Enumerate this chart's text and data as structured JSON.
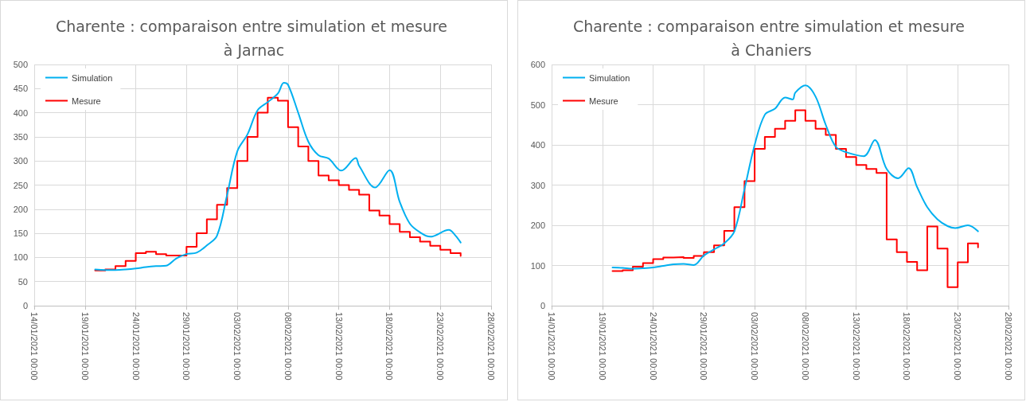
{
  "chart_data": [
    {
      "type": "line",
      "title": "Charente : comparaison entre simulation et mesure à Jarnac",
      "xlim": [
        "2021-01-14",
        "2021-02-28"
      ],
      "xticks": [
        {
          "value": "2021-01-14",
          "label": "14/01/2021 00:00"
        },
        {
          "value": "2021-01-19",
          "label": "19/01/2021 00:00"
        },
        {
          "value": "2021-01-24",
          "label": "24/01/2021 00:00"
        },
        {
          "value": "2021-01-29",
          "label": "29/01/2021 00:00"
        },
        {
          "value": "2021-02-03",
          "label": "03/02/2021 00:00"
        },
        {
          "value": "2021-02-08",
          "label": "08/02/2021 00:00"
        },
        {
          "value": "2021-02-13",
          "label": "13/02/2021 00:00"
        },
        {
          "value": "2021-02-18",
          "label": "18/02/2021 00:00"
        },
        {
          "value": "2021-02-23",
          "label": "23/02/2021 00:00"
        },
        {
          "value": "2021-02-28",
          "label": "28/02/2021 00:00"
        }
      ],
      "ylim": [
        0,
        500
      ],
      "yticks": [
        0,
        50,
        100,
        150,
        200,
        250,
        300,
        350,
        400,
        450,
        500
      ],
      "grid": true,
      "legend": "top left",
      "series": [
        {
          "name": "Simulation",
          "color": "#00b0f0",
          "x": [
            "2021-01-20",
            "2021-01-21",
            "2021-01-22",
            "2021-01-23",
            "2021-01-24",
            "2021-01-25",
            "2021-01-26",
            "2021-01-27",
            "2021-01-28",
            "2021-01-29",
            "2021-01-30",
            "2021-01-31",
            "2021-02-01",
            "2021-02-02",
            "2021-02-03",
            "2021-02-04",
            "2021-02-05",
            "2021-02-06",
            "2021-02-07",
            "2021-02-07T14:00",
            "2021-02-08",
            "2021-02-09",
            "2021-02-10",
            "2021-02-11",
            "2021-02-12",
            "2021-02-13T06:00",
            "2021-02-14T16:00",
            "2021-02-15",
            "2021-02-16T14:00",
            "2021-02-18",
            "2021-02-19",
            "2021-02-20",
            "2021-02-21",
            "2021-02-22",
            "2021-02-23T20:00",
            "2021-02-24T12:00",
            "2021-02-25"
          ],
          "values": [
            75,
            74,
            74,
            75,
            77,
            80,
            82,
            83,
            98,
            107,
            110,
            125,
            145,
            230,
            320,
            355,
            405,
            422,
            440,
            462,
            458,
            400,
            340,
            312,
            305,
            280,
            306,
            290,
            245,
            281,
            215,
            170,
            152,
            143,
            157,
            145,
            131
          ]
        },
        {
          "name": "Mesure",
          "type": "step",
          "color": "#ff0000",
          "x": [
            "2021-01-20",
            "2021-01-21",
            "2021-01-22",
            "2021-01-23",
            "2021-01-24",
            "2021-01-25",
            "2021-01-26",
            "2021-01-27",
            "2021-01-28",
            "2021-01-29",
            "2021-01-30",
            "2021-01-31",
            "2021-02-01",
            "2021-02-02",
            "2021-02-03",
            "2021-02-04",
            "2021-02-05",
            "2021-02-06",
            "2021-02-07",
            "2021-02-08",
            "2021-02-09",
            "2021-02-10",
            "2021-02-11",
            "2021-02-12",
            "2021-02-13",
            "2021-02-14",
            "2021-02-15",
            "2021-02-16",
            "2021-02-17",
            "2021-02-18",
            "2021-02-19",
            "2021-02-20",
            "2021-02-21",
            "2021-02-22",
            "2021-02-23",
            "2021-02-24",
            "2021-02-25"
          ],
          "values": [
            73,
            75,
            82,
            93,
            109,
            112,
            107,
            104,
            104,
            122,
            150,
            179,
            209,
            244,
            300,
            350,
            400,
            431,
            425,
            370,
            330,
            300,
            270,
            260,
            250,
            240,
            230,
            197,
            187,
            169,
            153,
            142,
            133,
            124,
            116,
            109,
            103
          ]
        }
      ]
    },
    {
      "type": "line",
      "title": "Charente : comparaison entre simulation et mesure à Chaniers",
      "xlim": [
        "2021-01-14",
        "2021-02-28"
      ],
      "xticks": [
        {
          "value": "2021-01-14",
          "label": "14/01/2021 00:00"
        },
        {
          "value": "2021-01-19",
          "label": "19/01/2021 00:00"
        },
        {
          "value": "2021-01-24",
          "label": "24/01/2021 00:00"
        },
        {
          "value": "2021-01-29",
          "label": "29/01/2021 00:00"
        },
        {
          "value": "2021-02-03",
          "label": "03/02/2021 00:00"
        },
        {
          "value": "2021-02-08",
          "label": "08/02/2021 00:00"
        },
        {
          "value": "2021-02-13",
          "label": "13/02/2021 00:00"
        },
        {
          "value": "2021-02-18",
          "label": "18/02/2021 00:00"
        },
        {
          "value": "2021-02-23",
          "label": "23/02/2021 00:00"
        },
        {
          "value": "2021-02-28",
          "label": "28/02/2021 00:00"
        }
      ],
      "ylim": [
        0,
        600
      ],
      "yticks": [
        0,
        100,
        200,
        300,
        400,
        500,
        600
      ],
      "grid": true,
      "legend": "top left",
      "series": [
        {
          "name": "Simulation",
          "color": "#00b0f0",
          "x": [
            "2021-01-20",
            "2021-01-21",
            "2021-01-22",
            "2021-01-23",
            "2021-01-24",
            "2021-01-25",
            "2021-01-26",
            "2021-01-27",
            "2021-01-28",
            "2021-01-29",
            "2021-01-30",
            "2021-01-31",
            "2021-02-01",
            "2021-02-02",
            "2021-02-03",
            "2021-02-04",
            "2021-02-05",
            "2021-02-06",
            "2021-02-06T18:00",
            "2021-02-07",
            "2021-02-08",
            "2021-02-09",
            "2021-02-10",
            "2021-02-11",
            "2021-02-12",
            "2021-02-13T18:00",
            "2021-02-14T20:00",
            "2021-02-16",
            "2021-02-17T03:00",
            "2021-02-18T04:00",
            "2021-02-19",
            "2021-02-20",
            "2021-02-21",
            "2021-02-22",
            "2021-02-22T18:00",
            "2021-02-24",
            "2021-02-25"
          ],
          "values": [
            95,
            94,
            92,
            93,
            95,
            99,
            103,
            104,
            101,
            125,
            140,
            155,
            185,
            290,
            400,
            475,
            490,
            518,
            513,
            530,
            548,
            520,
            450,
            395,
            382,
            372,
            412,
            340,
            317,
            342,
            295,
            245,
            215,
            198,
            193,
            200,
            185
          ]
        },
        {
          "name": "Mesure",
          "type": "step",
          "color": "#ff0000",
          "x": [
            "2021-01-20",
            "2021-01-21",
            "2021-01-22",
            "2021-01-23",
            "2021-01-24",
            "2021-01-25",
            "2021-01-26",
            "2021-01-27",
            "2021-01-28",
            "2021-01-29",
            "2021-01-30",
            "2021-01-31",
            "2021-02-01",
            "2021-02-02",
            "2021-02-03",
            "2021-02-04",
            "2021-02-05",
            "2021-02-06",
            "2021-02-07",
            "2021-02-08",
            "2021-02-09",
            "2021-02-10",
            "2021-02-11",
            "2021-02-12",
            "2021-02-13",
            "2021-02-14",
            "2021-02-15",
            "2021-02-16",
            "2021-02-17",
            "2021-02-18",
            "2021-02-19",
            "2021-02-20",
            "2021-02-21",
            "2021-02-22",
            "2021-02-23",
            "2021-02-24",
            "2021-02-25"
          ],
          "values": [
            86,
            88,
            97,
            106,
            116,
            120,
            121,
            119,
            124,
            133,
            150,
            186,
            245,
            310,
            390,
            420,
            440,
            460,
            486,
            460,
            440,
            425,
            390,
            370,
            350,
            340,
            330,
            165,
            133,
            109,
            88,
            197,
            142,
            46,
            108,
            155,
            145
          ]
        }
      ]
    }
  ]
}
